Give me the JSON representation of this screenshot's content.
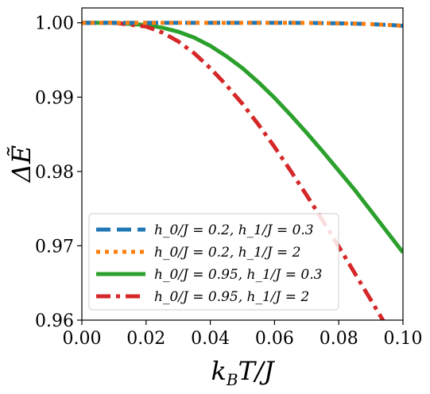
{
  "chart_data": {
    "type": "line",
    "xlabel": "k_BT/J",
    "ylabel": "ΔẼ",
    "xlim": [
      0.0,
      0.1
    ],
    "ylim": [
      0.96,
      1.002
    ],
    "x_ticks": [
      "0.00",
      "0.02",
      "0.04",
      "0.06",
      "0.08",
      "0.10"
    ],
    "y_ticks": [
      "0.96",
      "0.97",
      "0.98",
      "0.99",
      "1.00"
    ],
    "legend_position": "lower-left",
    "grid": false,
    "x": [
      0.0,
      0.01,
      0.02,
      0.025,
      0.03,
      0.035,
      0.04,
      0.045,
      0.05,
      0.055,
      0.06,
      0.065,
      0.07,
      0.075,
      0.08,
      0.085,
      0.09,
      0.095,
      0.1
    ],
    "series": [
      {
        "name": "h_0/J = 0.2,  h_1/J = 0.3",
        "color": "#1f77b4",
        "dash": "dashed",
        "values": [
          1.0,
          1.0,
          1.0,
          1.0,
          1.0,
          1.0,
          1.0,
          1.0,
          1.0,
          1.0,
          1.0,
          0.99999,
          0.99998,
          0.99996,
          0.99993,
          0.99989,
          0.99982,
          0.99972,
          0.9996
        ]
      },
      {
        "name": "h_0/J = 0.2,  h_1/J = 2",
        "color": "#ff7f0e",
        "dash": "dotted",
        "values": [
          1.0,
          1.0,
          1.0,
          1.0,
          1.0,
          1.0,
          1.0,
          1.0,
          1.0,
          1.0,
          1.0,
          0.99999,
          0.99998,
          0.99996,
          0.99993,
          0.99989,
          0.99982,
          0.99972,
          0.9996
        ]
      },
      {
        "name": "h_0/J = 0.95,  h_1/J = 0.3",
        "color": "#2ca02c",
        "dash": "solid",
        "values": [
          1.0,
          1.0,
          0.9997,
          0.99935,
          0.9988,
          0.998,
          0.9969,
          0.9955,
          0.9939,
          0.992,
          0.9899,
          0.9876,
          0.9852,
          0.9827,
          0.9801,
          0.9775,
          0.9747,
          0.9719,
          0.9691
        ]
      },
      {
        "name": "h_0/J = 0.95,  h_1/J = 2",
        "color": "#d62728",
        "dash": "dashdot",
        "values": [
          1.0,
          1.0,
          0.9995,
          0.9987,
          0.9975,
          0.9959,
          0.9939,
          0.9916,
          0.9891,
          0.9863,
          0.9833,
          0.9801,
          0.9768,
          0.9734,
          0.9699,
          0.9663,
          0.9627,
          0.9591,
          0.9555
        ]
      }
    ],
    "legend": [
      {
        "h0": "h_0/J = 0.2",
        "h1": "h_1/J = 0.3"
      },
      {
        "h0": "h_0/J = 0.2",
        "h1": "h_1/J = 2"
      },
      {
        "h0": "h_0/J = 0.95",
        "h1": "h_1/J = 0.3"
      },
      {
        "h0": "h_0/J = 0.95",
        "h1": "h_1/J = 2"
      }
    ]
  }
}
